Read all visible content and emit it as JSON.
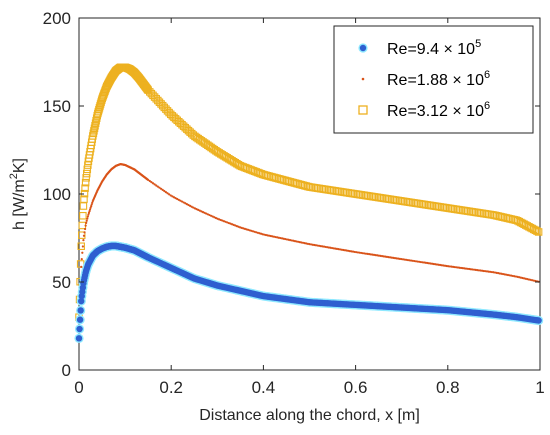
{
  "chart_data": {
    "type": "scatter",
    "title": "",
    "xlabel": "Distance along the chord, x [m]",
    "ylabel": {
      "prefix": "h [W/m",
      "sup": "2",
      "suffix": "K]"
    },
    "xlim": [
      0,
      1
    ],
    "ylim": [
      0,
      200
    ],
    "xticks": [
      "0",
      "0.2",
      "0.4",
      "0.6",
      "0.8",
      "1"
    ],
    "yticks": [
      "0",
      "50",
      "100",
      "150",
      "200"
    ],
    "grid": false,
    "legend_position": "top-right",
    "series": [
      {
        "name": {
          "base": "Re=9.4",
          "times": " × 10",
          "exp": "5"
        },
        "marker": "filled-circle",
        "color": "#2f5fd0",
        "halo_color": "#8ee8ff",
        "x": [
          0,
          0.005,
          0.01,
          0.015,
          0.02,
          0.03,
          0.04,
          0.05,
          0.06,
          0.07,
          0.08,
          0.09,
          0.1,
          0.12,
          0.15,
          0.2,
          0.25,
          0.3,
          0.4,
          0.5,
          0.6,
          0.7,
          0.8,
          0.9,
          0.95,
          1.0
        ],
        "y": [
          18,
          40,
          50,
          56,
          60,
          65,
          67.5,
          69,
          70,
          70.5,
          70.5,
          70,
          69.5,
          68,
          64,
          58,
          52,
          48,
          42,
          38.5,
          37,
          35.5,
          34,
          31.5,
          30,
          28
        ]
      },
      {
        "name": {
          "base": "Re=1.88",
          "times": " × 10",
          "exp": "6"
        },
        "marker": "dot",
        "color": "#d95319",
        "x": [
          0,
          0.005,
          0.01,
          0.015,
          0.02,
          0.03,
          0.04,
          0.05,
          0.06,
          0.07,
          0.08,
          0.09,
          0.1,
          0.12,
          0.15,
          0.2,
          0.25,
          0.3,
          0.35,
          0.4,
          0.5,
          0.6,
          0.7,
          0.8,
          0.9,
          0.95,
          1.0
        ],
        "y": [
          25,
          60,
          75,
          83,
          88,
          96,
          102,
          107,
          111,
          114,
          116,
          117,
          116.5,
          114,
          108,
          99,
          92,
          86,
          81,
          77,
          71.5,
          67,
          63,
          59,
          55.5,
          53,
          50
        ]
      },
      {
        "name": {
          "base": "Re=3.12",
          "times": " × 10",
          "exp": "6"
        },
        "marker": "open-square",
        "color": "#edb120",
        "x": [
          0,
          0.005,
          0.01,
          0.015,
          0.02,
          0.03,
          0.04,
          0.05,
          0.06,
          0.07,
          0.08,
          0.09,
          0.1,
          0.11,
          0.12,
          0.13,
          0.15,
          0.2,
          0.25,
          0.3,
          0.35,
          0.4,
          0.5,
          0.6,
          0.7,
          0.8,
          0.9,
          0.95,
          1.0
        ],
        "y": [
          30,
          72,
          95,
          108,
          118,
          133,
          145,
          154,
          161,
          166,
          170,
          172,
          172,
          171,
          169,
          166,
          159,
          145,
          133,
          124,
          116,
          111,
          104,
          100,
          96,
          92,
          88,
          85,
          78
        ]
      }
    ]
  }
}
